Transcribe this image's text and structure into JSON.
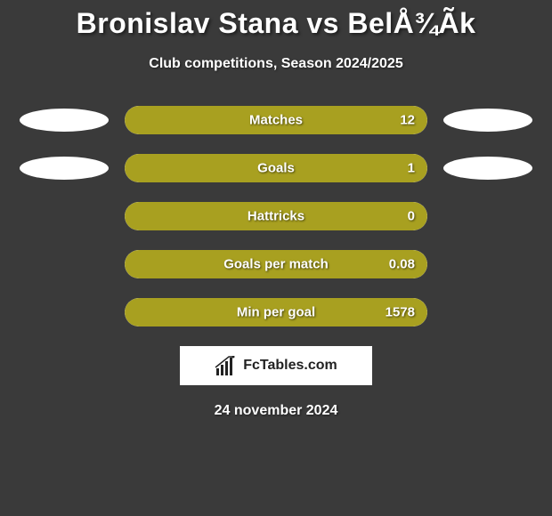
{
  "title": "Bronislav Stana vs BelÅ¾Ãk",
  "subtitle": "Club competitions, Season 2024/2025",
  "date": "24 november 2024",
  "logo_text": "FcTables.com",
  "colors": {
    "background": "#3a3a3a",
    "bar_fill": "#a8a020",
    "bar_bg": "#ffffff",
    "ellipse": "#ffffff",
    "text": "#ffffff",
    "logo_bg": "#ffffff",
    "logo_text": "#222222"
  },
  "stats": [
    {
      "label": "Matches",
      "value": "12",
      "fill_pct": 100,
      "left_ellipse": true,
      "right_ellipse": true
    },
    {
      "label": "Goals",
      "value": "1",
      "fill_pct": 100,
      "left_ellipse": true,
      "right_ellipse": true
    },
    {
      "label": "Hattricks",
      "value": "0",
      "fill_pct": 100,
      "left_ellipse": false,
      "right_ellipse": false
    },
    {
      "label": "Goals per match",
      "value": "0.08",
      "fill_pct": 100,
      "left_ellipse": false,
      "right_ellipse": false
    },
    {
      "label": "Min per goal",
      "value": "1578",
      "fill_pct": 100,
      "left_ellipse": false,
      "right_ellipse": false
    }
  ]
}
